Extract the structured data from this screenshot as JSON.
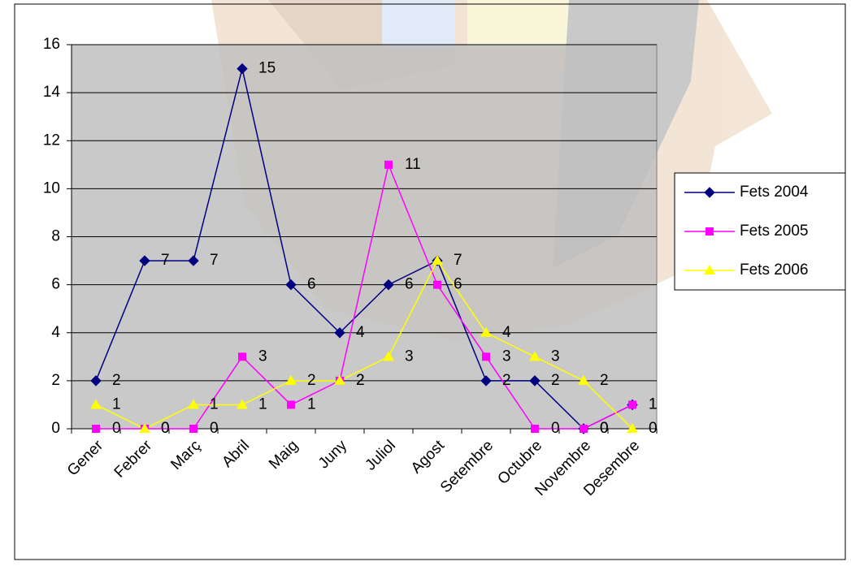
{
  "chart_data": {
    "type": "line",
    "categories": [
      "Gener",
      "Febrer",
      "Març",
      "Abril",
      "Maig",
      "Juny",
      "Juliol",
      "Agost",
      "Setembre",
      "Octubre",
      "Novembre",
      "Desembre"
    ],
    "series": [
      {
        "name": "Fets 2004",
        "color": "#000080",
        "marker": "diamond",
        "values": [
          2,
          7,
          7,
          15,
          6,
          4,
          6,
          7,
          2,
          2,
          0,
          1
        ]
      },
      {
        "name": "Fets 2005",
        "color": "#ff00ff",
        "marker": "square",
        "values": [
          0,
          0,
          0,
          3,
          1,
          2,
          11,
          6,
          3,
          0,
          0,
          1
        ]
      },
      {
        "name": "Fets 2006",
        "color": "#ffff00",
        "marker": "triangle",
        "values": [
          1,
          0,
          1,
          1,
          2,
          2,
          3,
          7,
          4,
          3,
          2,
          0
        ]
      }
    ],
    "ylim": [
      0,
      16
    ],
    "yticks": [
      0,
      2,
      4,
      6,
      8,
      10,
      12,
      14,
      16
    ],
    "grid": true,
    "legend": "right"
  }
}
